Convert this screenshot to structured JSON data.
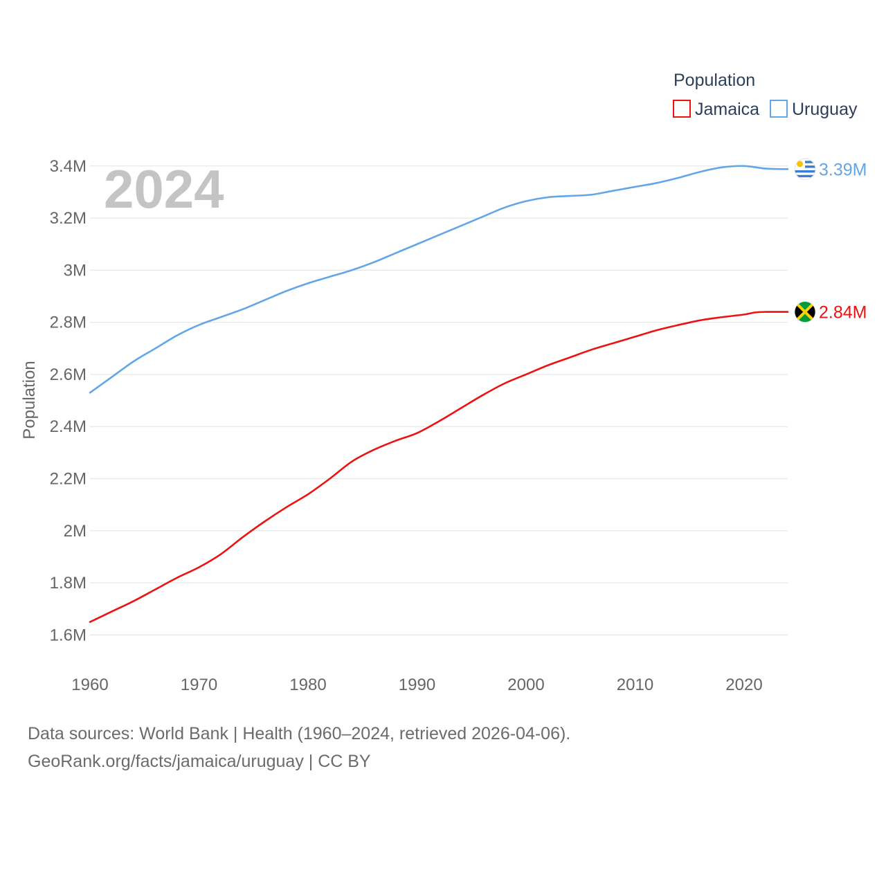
{
  "chart_data": {
    "type": "line",
    "title": "",
    "year_display": "2024",
    "xlabel": "",
    "ylabel": "Population",
    "xlim": [
      1960,
      2024
    ],
    "ylim": [
      1500000,
      3450000
    ],
    "x_ticks": [
      1960,
      1970,
      1980,
      1990,
      2000,
      2010,
      2020
    ],
    "y_ticks": [
      {
        "value": 1600000,
        "label": "1.6M"
      },
      {
        "value": 1800000,
        "label": "1.8M"
      },
      {
        "value": 2000000,
        "label": "2M"
      },
      {
        "value": 2200000,
        "label": "2.2M"
      },
      {
        "value": 2400000,
        "label": "2.4M"
      },
      {
        "value": 2600000,
        "label": "2.6M"
      },
      {
        "value": 2800000,
        "label": "2.8M"
      },
      {
        "value": 3000000,
        "label": "3M"
      },
      {
        "value": 3200000,
        "label": "3.2M"
      },
      {
        "value": 3400000,
        "label": "3.4M"
      }
    ],
    "legend": {
      "title": "Population",
      "position": "top-right"
    },
    "series": [
      {
        "name": "Jamaica",
        "color": "#ee1111",
        "end_label": "2.84M",
        "flag_icon": "jamaica-flag-icon",
        "points": [
          [
            1960,
            1650000
          ],
          [
            1962,
            1690000
          ],
          [
            1964,
            1730000
          ],
          [
            1966,
            1775000
          ],
          [
            1968,
            1820000
          ],
          [
            1970,
            1860000
          ],
          [
            1972,
            1910000
          ],
          [
            1974,
            1975000
          ],
          [
            1976,
            2035000
          ],
          [
            1978,
            2090000
          ],
          [
            1980,
            2140000
          ],
          [
            1982,
            2200000
          ],
          [
            1984,
            2265000
          ],
          [
            1986,
            2310000
          ],
          [
            1988,
            2345000
          ],
          [
            1990,
            2375000
          ],
          [
            1992,
            2420000
          ],
          [
            1994,
            2470000
          ],
          [
            1996,
            2520000
          ],
          [
            1998,
            2565000
          ],
          [
            2000,
            2600000
          ],
          [
            2002,
            2635000
          ],
          [
            2004,
            2665000
          ],
          [
            2006,
            2695000
          ],
          [
            2008,
            2720000
          ],
          [
            2010,
            2745000
          ],
          [
            2012,
            2770000
          ],
          [
            2014,
            2790000
          ],
          [
            2016,
            2808000
          ],
          [
            2018,
            2820000
          ],
          [
            2020,
            2830000
          ],
          [
            2021,
            2838000
          ],
          [
            2022,
            2840000
          ],
          [
            2024,
            2840000
          ]
        ]
      },
      {
        "name": "Uruguay",
        "color": "#62a6e8",
        "end_label": "3.39M",
        "flag_icon": "uruguay-flag-icon",
        "points": [
          [
            1960,
            2530000
          ],
          [
            1962,
            2590000
          ],
          [
            1964,
            2650000
          ],
          [
            1966,
            2700000
          ],
          [
            1968,
            2750000
          ],
          [
            1970,
            2790000
          ],
          [
            1972,
            2820000
          ],
          [
            1974,
            2850000
          ],
          [
            1976,
            2885000
          ],
          [
            1978,
            2920000
          ],
          [
            1980,
            2950000
          ],
          [
            1982,
            2975000
          ],
          [
            1984,
            3000000
          ],
          [
            1986,
            3030000
          ],
          [
            1988,
            3065000
          ],
          [
            1990,
            3100000
          ],
          [
            1992,
            3135000
          ],
          [
            1994,
            3170000
          ],
          [
            1996,
            3205000
          ],
          [
            1998,
            3240000
          ],
          [
            2000,
            3265000
          ],
          [
            2002,
            3280000
          ],
          [
            2004,
            3285000
          ],
          [
            2006,
            3290000
          ],
          [
            2008,
            3305000
          ],
          [
            2010,
            3320000
          ],
          [
            2012,
            3335000
          ],
          [
            2014,
            3355000
          ],
          [
            2016,
            3378000
          ],
          [
            2018,
            3395000
          ],
          [
            2020,
            3400000
          ],
          [
            2022,
            3390000
          ],
          [
            2024,
            3388000
          ]
        ]
      }
    ]
  },
  "footer": {
    "sources": "Data sources: World Bank | Health (1960–2024, retrieved 2026-04-06).",
    "attribution": "GeoRank.org/facts/jamaica/uruguay | CC BY"
  }
}
